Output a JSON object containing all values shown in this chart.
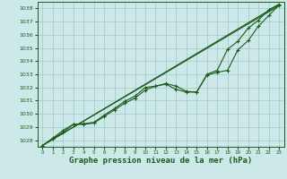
{
  "background_color": "#cce8e8",
  "grid_color": "#aacccc",
  "line_color": "#1a5c1a",
  "marker_color": "#1a5c1a",
  "xlabel": "Graphe pression niveau de la mer (hPa)",
  "xlabel_fontsize": 6.5,
  "ylim": [
    1027.5,
    1038.5
  ],
  "xlim": [
    -0.5,
    23.5
  ],
  "yticks": [
    1028,
    1029,
    1030,
    1031,
    1032,
    1033,
    1034,
    1035,
    1036,
    1037,
    1038
  ],
  "xticks": [
    0,
    1,
    2,
    3,
    4,
    5,
    6,
    7,
    8,
    9,
    10,
    11,
    12,
    13,
    14,
    15,
    16,
    17,
    18,
    19,
    20,
    21,
    22,
    23
  ],
  "series_wiggly1": [
    1027.6,
    1028.1,
    1028.6,
    1029.2,
    1029.2,
    1029.3,
    1029.8,
    1030.3,
    1030.8,
    1031.2,
    1031.8,
    1032.1,
    1032.3,
    1032.1,
    1031.7,
    1031.65,
    1032.95,
    1033.15,
    1033.3,
    1034.85,
    1035.55,
    1036.65,
    1037.45,
    1038.25
  ],
  "series_wiggly2": [
    1027.6,
    1028.15,
    1028.75,
    1029.2,
    1029.25,
    1029.35,
    1029.9,
    1030.4,
    1030.95,
    1031.35,
    1032.0,
    1032.1,
    1032.25,
    1031.85,
    1031.65,
    1031.65,
    1033.0,
    1033.3,
    1034.9,
    1035.5,
    1036.5,
    1037.1,
    1037.9,
    1038.3
  ]
}
